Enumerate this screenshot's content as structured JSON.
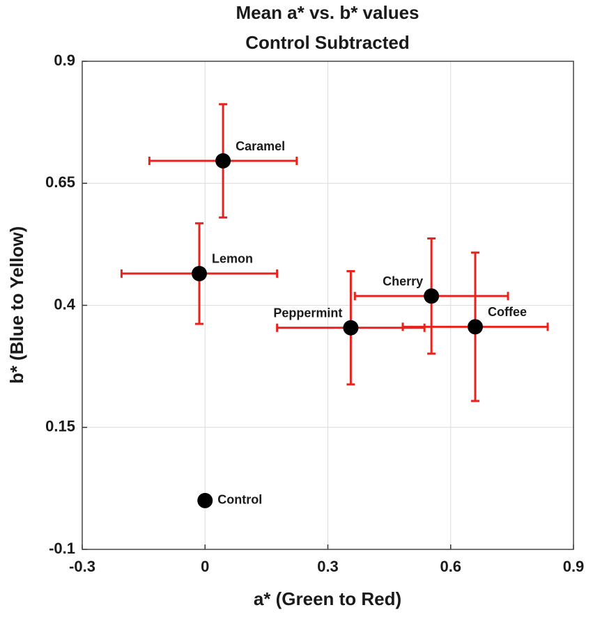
{
  "chart_data": {
    "type": "scatter",
    "title": "Mean a* vs. b* values",
    "subtitle": "Control Subtracted",
    "x_label": "a* (Green to Red)",
    "y_label": "b* (Blue to Yellow)",
    "xlim": [
      -0.3,
      0.9
    ],
    "xticks": [
      -0.3,
      0,
      0.3,
      0.6,
      0.9
    ],
    "ylim": [
      -0.1,
      0.9
    ],
    "yticks": [
      -0.1,
      0.15,
      0.4,
      0.65,
      0.9
    ],
    "grid": true,
    "marker_color": "#000000",
    "error_color": "#e8221d",
    "points": [
      {
        "label": "Caramel",
        "x": 0.044,
        "y": 0.696,
        "xerr": 0.18,
        "yerr": 0.116
      },
      {
        "label": "Lemon",
        "x": -0.014,
        "y": 0.465,
        "xerr": 0.19,
        "yerr": 0.103
      },
      {
        "label": "Cherry",
        "x": 0.553,
        "y": 0.419,
        "xerr": 0.187,
        "yerr": 0.118
      },
      {
        "label": "Peppermint",
        "x": 0.356,
        "y": 0.354,
        "xerr": 0.18,
        "yerr": 0.116
      },
      {
        "label": "Coffee",
        "x": 0.66,
        "y": 0.356,
        "xerr": 0.177,
        "yerr": 0.152
      },
      {
        "label": "Control",
        "x": 0,
        "y": 0
      }
    ]
  }
}
